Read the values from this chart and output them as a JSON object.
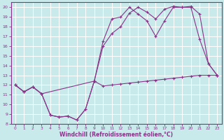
{
  "background_color": "#c8eaea",
  "grid_color": "#ffffff",
  "line_color": "#883388",
  "xlabel": "Windchill (Refroidissement éolien,°C)",
  "xlim": [
    -0.5,
    23.5
  ],
  "ylim": [
    8,
    20.5
  ],
  "yticks": [
    8,
    9,
    10,
    11,
    12,
    13,
    14,
    15,
    16,
    17,
    18,
    19,
    20
  ],
  "xticks": [
    0,
    1,
    2,
    3,
    4,
    5,
    6,
    7,
    8,
    9,
    10,
    11,
    12,
    13,
    14,
    15,
    16,
    17,
    18,
    19,
    20,
    21,
    22,
    23
  ],
  "series": [
    {
      "x": [
        0,
        1,
        2,
        3,
        4,
        5,
        6,
        7,
        8,
        9,
        10,
        11,
        12,
        13,
        14,
        15,
        16,
        17,
        18,
        19,
        20,
        21,
        22,
        23
      ],
      "y": [
        12,
        11.3,
        11.8,
        11.1,
        8.9,
        8.7,
        8.8,
        8.4,
        9.5,
        12.4,
        11.9,
        12.0,
        12.1,
        12.2,
        12.3,
        12.4,
        12.5,
        12.6,
        12.7,
        12.8,
        12.9,
        13.0,
        13.0,
        13.0
      ]
    },
    {
      "x": [
        0,
        1,
        2,
        3,
        4,
        5,
        6,
        7,
        8,
        9,
        10,
        11,
        12,
        13,
        14,
        15,
        16,
        17,
        18,
        19,
        20,
        21,
        22,
        23
      ],
      "y": [
        12,
        11.3,
        11.8,
        11.1,
        8.9,
        8.7,
        8.8,
        8.4,
        9.5,
        12.4,
        16.5,
        18.8,
        19.0,
        20.0,
        19.3,
        18.6,
        17.0,
        18.6,
        20.0,
        20.0,
        20.0,
        16.7,
        14.2,
        13.0
      ]
    },
    {
      "x": [
        0,
        1,
        2,
        3,
        9,
        10,
        11,
        12,
        13,
        14,
        15,
        16,
        17,
        18,
        19,
        20,
        21,
        22,
        23
      ],
      "y": [
        12,
        11.3,
        11.8,
        11.1,
        12.4,
        16.0,
        17.3,
        18.0,
        19.4,
        20.0,
        19.5,
        18.8,
        19.8,
        20.1,
        20.0,
        20.1,
        19.3,
        14.2,
        13.0
      ]
    }
  ],
  "figsize": [
    3.2,
    2.0
  ],
  "dpi": 100
}
